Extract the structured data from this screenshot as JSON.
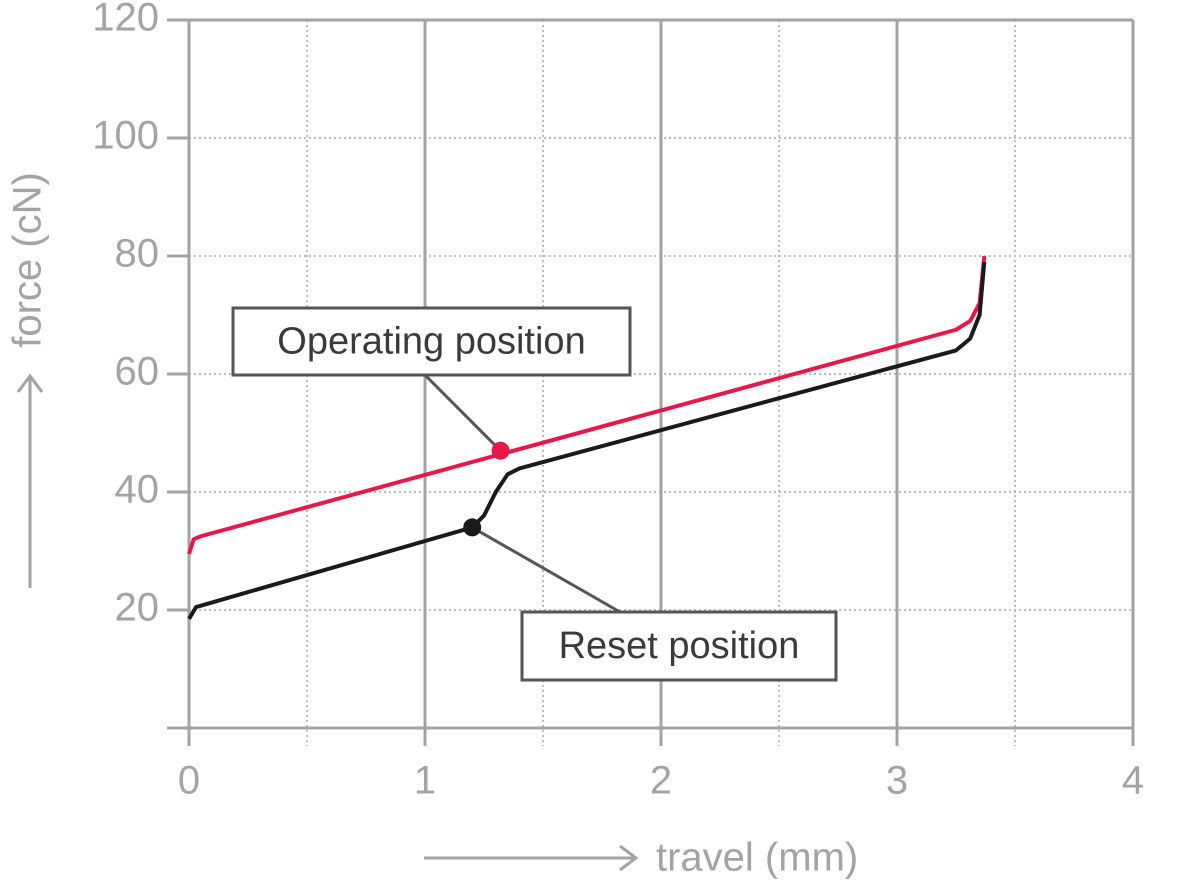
{
  "chart_data": {
    "type": "line",
    "x_label": "travel (mm)",
    "y_label": "force (cN)",
    "xlim": [
      0,
      4
    ],
    "ylim": [
      0,
      120
    ],
    "xticks": [
      0,
      1,
      2,
      3,
      4
    ],
    "yticks": [
      20,
      40,
      60,
      80,
      100,
      120
    ],
    "grid": true,
    "series": [
      {
        "name": "Operating position",
        "color": "#e8174a",
        "x": [
          0,
          0.02,
          0.05,
          3.25,
          3.31,
          3.35,
          3.37
        ],
        "values": [
          29.5,
          32,
          32.5,
          67.5,
          69,
          72,
          80
        ],
        "marker": {
          "x": 1.32,
          "y": 47
        }
      },
      {
        "name": "Reset position",
        "color": "#1a1a1a",
        "x": [
          0,
          0.03,
          0.1,
          1.2,
          1.25,
          1.3,
          1.35,
          1.4,
          3.25,
          3.31,
          3.35,
          3.37
        ],
        "values": [
          18.5,
          20.5,
          21.3,
          34,
          36,
          40,
          43,
          44,
          64,
          66,
          70,
          79
        ],
        "marker": {
          "x": 1.2,
          "y": 34
        }
      }
    ]
  }
}
